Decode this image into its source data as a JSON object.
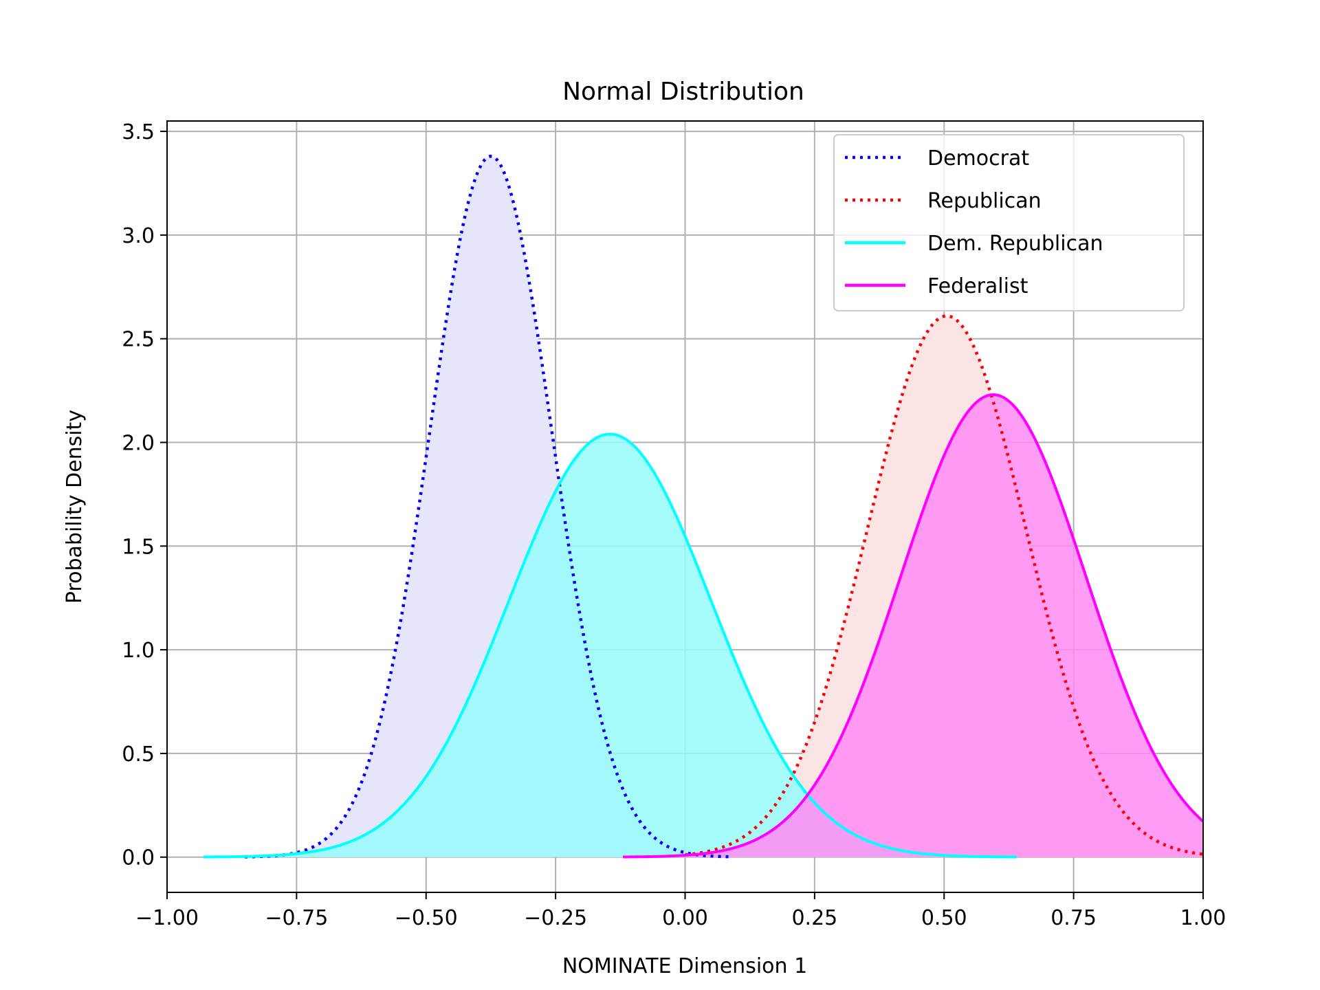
{
  "chart_data": {
    "type": "line",
    "title": "Normal Distribution",
    "xlabel": "NOMINATE Dimension 1",
    "ylabel": "Probability Density",
    "xlim": [
      -1.0,
      1.0
    ],
    "ylim": [
      -0.17,
      3.55
    ],
    "xticks": [
      -1.0,
      -0.75,
      -0.5,
      -0.25,
      0.0,
      0.25,
      0.5,
      0.75,
      1.0
    ],
    "xtick_labels": [
      "−1.00",
      "−0.75",
      "−0.50",
      "−0.25",
      "0.00",
      "0.25",
      "0.50",
      "0.75",
      "1.00"
    ],
    "yticks": [
      0.0,
      0.5,
      1.0,
      1.5,
      2.0,
      2.5,
      3.0,
      3.5
    ],
    "ytick_labels": [
      "0.0",
      "0.5",
      "1.0",
      "1.5",
      "2.0",
      "2.5",
      "3.0",
      "3.5"
    ],
    "grid": true,
    "legend_position": "top-right",
    "series": [
      {
        "name": "Democrat",
        "style": "dotted",
        "color": "#0000ff",
        "fill": "#e5e5fc",
        "mean": -0.375,
        "sd": 0.118,
        "x_range": [
          -0.85,
          0.09
        ],
        "peak": 3.38
      },
      {
        "name": "Republican",
        "style": "dotted",
        "color": "#ff0000",
        "fill": "#fde4e4",
        "mean": 0.505,
        "sd": 0.153,
        "x_range": [
          0.0,
          1.0
        ],
        "peak": 2.61
      },
      {
        "name": "Dem. Republican",
        "style": "solid",
        "color": "#00ffff",
        "fill": "#96fcf9",
        "mean": -0.145,
        "sd": 0.195,
        "x_range": [
          -0.93,
          0.64
        ],
        "peak": 2.04
      },
      {
        "name": "Federalist",
        "style": "solid",
        "color": "#ff00ff",
        "fill": "#ff8cf5",
        "mean": 0.595,
        "sd": 0.179,
        "x_range": [
          -0.12,
          1.0
        ],
        "peak": 2.23
      }
    ]
  }
}
